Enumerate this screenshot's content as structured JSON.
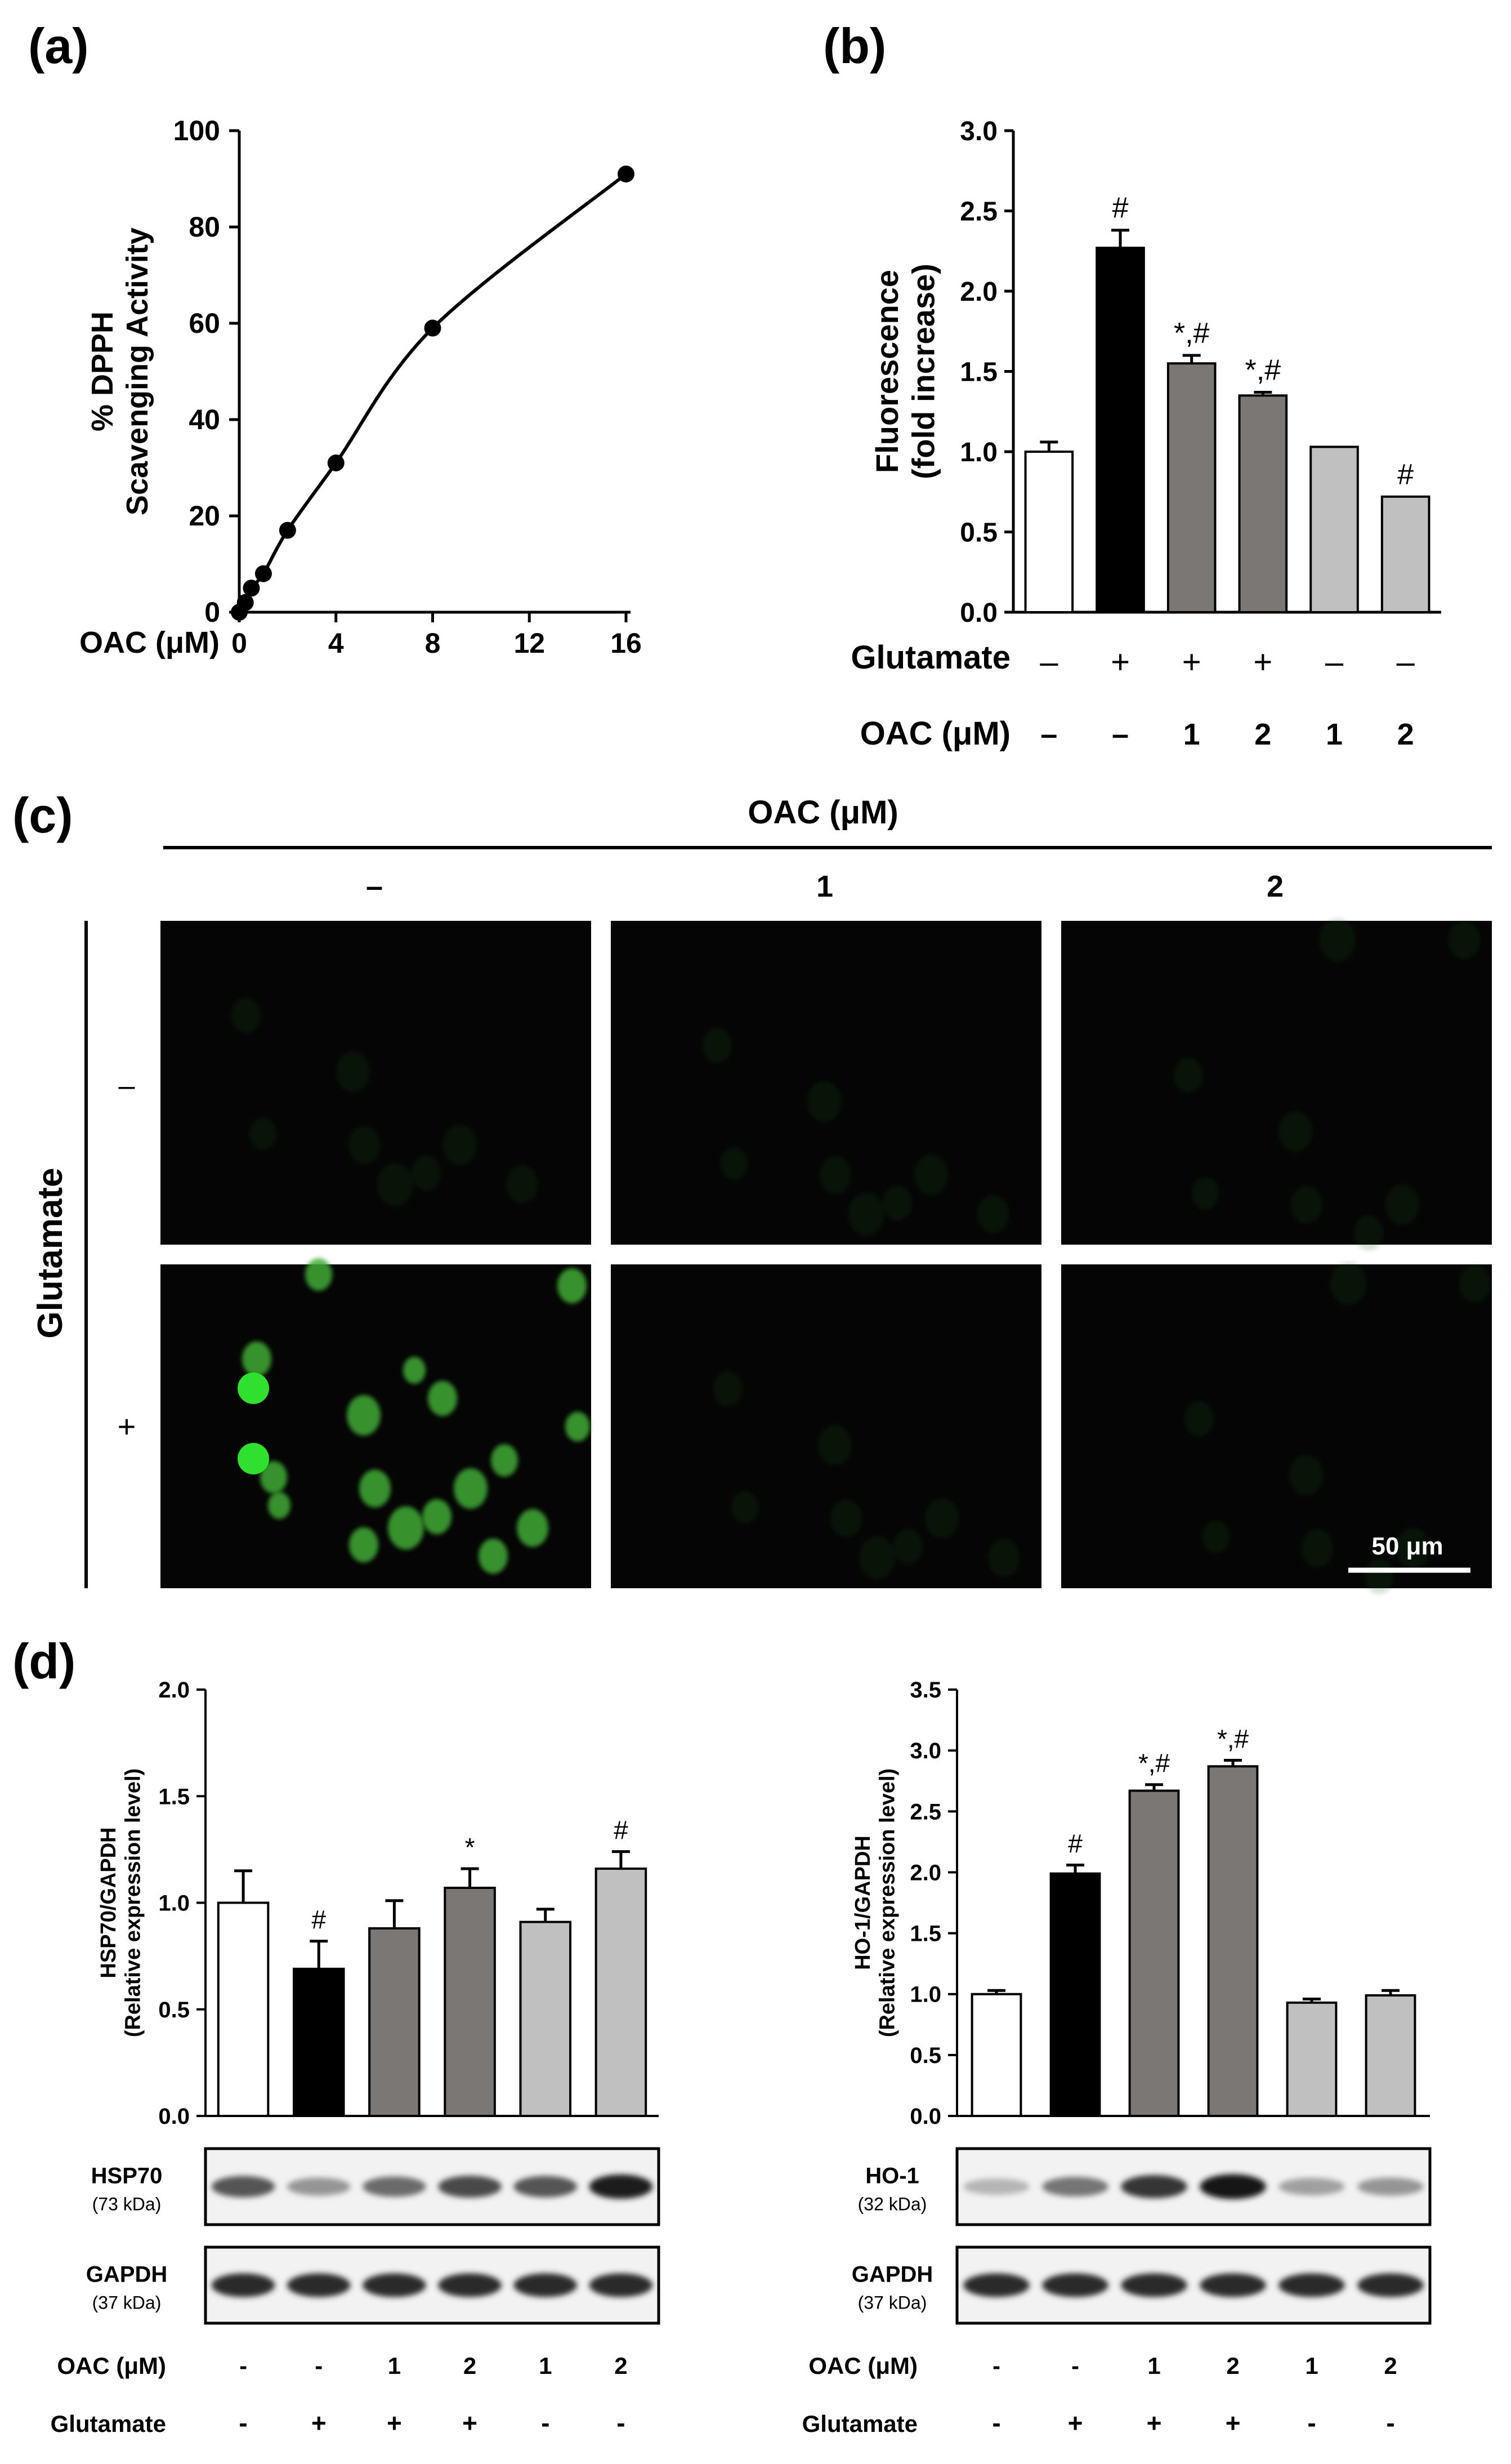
{
  "panels": {
    "a": "(a)",
    "b": "(b)",
    "c": "(c)",
    "d": "(d)"
  },
  "chart_data": [
    {
      "id": "a",
      "type": "line",
      "ylabel_lines": [
        "% DPPH",
        "Scavenging Activity"
      ],
      "xlabel": "OAC (μM)",
      "xlim": [
        0,
        16
      ],
      "ylim": [
        0,
        100
      ],
      "xticks": [
        "0",
        "4",
        "8",
        "12",
        "16"
      ],
      "yticks": [
        "0",
        "20",
        "40",
        "60",
        "80",
        "100"
      ],
      "x": [
        0,
        0.25,
        0.5,
        1,
        2,
        4,
        8,
        16
      ],
      "y": [
        0,
        2,
        5,
        8,
        17,
        31,
        59,
        91
      ]
    },
    {
      "id": "b",
      "type": "bar",
      "ylabel_lines": [
        "Fluorescence",
        "(fold increase)"
      ],
      "ylim": [
        0,
        3.0
      ],
      "yticks": [
        "0.0",
        "0.5",
        "1.0",
        "1.5",
        "2.0",
        "2.5",
        "3.0"
      ],
      "values": [
        1.0,
        2.27,
        1.55,
        1.35,
        1.03,
        0.72
      ],
      "errors": [
        0.06,
        0.11,
        0.05,
        0.02,
        0.0,
        0.0
      ],
      "colors": [
        "#ffffff",
        "#000000",
        "#7a7775",
        "#7a7775",
        "#c0c0c0",
        "#c0c0c0"
      ],
      "annotations": [
        "",
        "#",
        "*,#",
        "*,#",
        "",
        "#"
      ],
      "row_labels": [
        "Glutamate",
        "OAC (μM)"
      ],
      "glutamate": [
        "–",
        "+",
        "+",
        "+",
        "–",
        "–"
      ],
      "oac": [
        "–",
        "–",
        "1",
        "2",
        "1",
        "2"
      ]
    },
    {
      "id": "d1",
      "type": "bar",
      "ylabel_lines": [
        "HSP70/GAPDH",
        "(Relative expression level)"
      ],
      "ylim": [
        0,
        2.0
      ],
      "yticks": [
        "0.0",
        "0.5",
        "1.0",
        "1.5",
        "2.0"
      ],
      "values": [
        1.0,
        0.69,
        0.88,
        1.07,
        0.91,
        1.16
      ],
      "errors": [
        0.15,
        0.13,
        0.13,
        0.09,
        0.06,
        0.08
      ],
      "colors": [
        "#ffffff",
        "#000000",
        "#7a7775",
        "#7a7775",
        "#c0c0c0",
        "#c0c0c0"
      ],
      "annotations": [
        "",
        "#",
        "",
        "*",
        "",
        "#"
      ]
    },
    {
      "id": "d2",
      "type": "bar",
      "ylabel_lines": [
        "HO-1/GAPDH",
        "(Relative expression level)"
      ],
      "ylim": [
        0,
        3.5
      ],
      "yticks": [
        "0.0",
        "0.5",
        "1.0",
        "1.5",
        "2.0",
        "2.5",
        "3.0",
        "3.5"
      ],
      "values": [
        1.0,
        1.99,
        2.67,
        2.87,
        0.93,
        0.99
      ],
      "errors": [
        0.03,
        0.07,
        0.05,
        0.05,
        0.03,
        0.04
      ],
      "colors": [
        "#ffffff",
        "#000000",
        "#7a7775",
        "#7a7775",
        "#c0c0c0",
        "#c0c0c0"
      ],
      "annotations": [
        "",
        "#",
        "*,#",
        "*,#",
        "",
        ""
      ]
    }
  ],
  "micrographs": {
    "column_header": "OAC (μM)",
    "columns": [
      "–",
      "1",
      "2"
    ],
    "row_header": "Glutamate",
    "rows": [
      "–",
      "+"
    ],
    "scale_bar": "50 μm"
  },
  "blots": {
    "hsp70": {
      "label": "HSP70",
      "kda": "(73 kDa)",
      "intensity": [
        0.7,
        0.4,
        0.6,
        0.75,
        0.7,
        0.95
      ]
    },
    "ho1": {
      "label": "HO-1",
      "kda": "(32 kDa)",
      "intensity": [
        0.25,
        0.55,
        0.85,
        1.0,
        0.35,
        0.4
      ]
    },
    "gapdh": {
      "label": "GAPDH",
      "kda": "(37 kDa)",
      "intensity": [
        0.9,
        0.9,
        0.9,
        0.9,
        0.9,
        0.9
      ]
    }
  },
  "d_conditions": {
    "row_labels": [
      "OAC (μM)",
      "Glutamate"
    ],
    "oac": [
      "-",
      "-",
      "1",
      "2",
      "1",
      "2"
    ],
    "glutamate": [
      "-",
      "+",
      "+",
      "+",
      "-",
      "-"
    ]
  }
}
